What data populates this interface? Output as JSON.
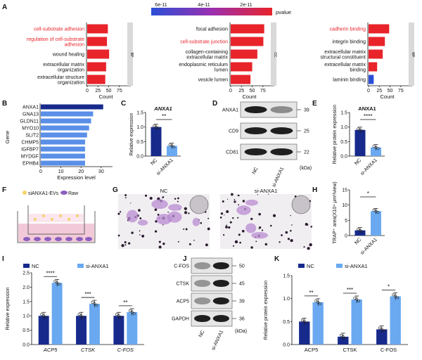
{
  "panel_letters": [
    "A",
    "B",
    "C",
    "D",
    "E",
    "F",
    "G",
    "H",
    "I",
    "J",
    "K"
  ],
  "colors": {
    "red": "#e8232a",
    "blue": "#2a4fd6",
    "navy": "#172a8c",
    "light_blue": "#6aa9f0",
    "gray_band": "#d9d9d9"
  },
  "colorbar": {
    "ticks": [
      "6e-11",
      "4e-11",
      "2e-11"
    ],
    "label": "pvalue"
  },
  "chart_data": [
    {
      "panel": "A",
      "type": "bar",
      "orientation": "horizontal",
      "facet": "BP",
      "xlabel": "Count",
      "xticks": [
        "0",
        "25",
        "50",
        "75"
      ],
      "xlim": [
        0,
        90
      ],
      "categories": [
        "cell-substrate adhesion",
        "regulation of cell-substrate adhesion",
        "wound healing",
        "extracellular matrix organization",
        "extracellular structure organization"
      ],
      "highlight": [
        true,
        true,
        false,
        false,
        false
      ],
      "values": [
        48,
        46,
        51,
        44,
        42
      ]
    },
    {
      "panel": "A",
      "type": "bar",
      "orientation": "horizontal",
      "facet": "CC",
      "xlabel": "Count",
      "xticks": [
        "0",
        "25",
        "50",
        "75"
      ],
      "xlim": [
        0,
        90
      ],
      "categories": [
        "focal adhesion",
        "cell-substrate junction",
        "collagen-containing extracellular matrix",
        "endoplasmic reticulum lumen",
        "vesicle lumen"
      ],
      "highlight": [
        false,
        true,
        false,
        false,
        false
      ],
      "values": [
        78,
        76,
        62,
        50,
        46
      ]
    },
    {
      "panel": "A",
      "type": "bar",
      "orientation": "horizontal",
      "facet": "MF",
      "xlabel": "Count",
      "xticks": [
        "0",
        "25",
        "50",
        "75"
      ],
      "xlim": [
        0,
        90
      ],
      "categories": [
        "cadherin binding",
        "integrin binding",
        "extracellular matrix structural constituent",
        "extracellular matrix binding",
        "laminin binding"
      ],
      "highlight": [
        true,
        false,
        false,
        false,
        false
      ],
      "values": [
        48,
        38,
        33,
        20,
        12
      ]
    },
    {
      "panel": "B",
      "type": "bar",
      "orientation": "horizontal",
      "xlabel": "Expression level",
      "ylabel": "Gene",
      "xticks": [
        "0",
        "10",
        "20",
        "30"
      ],
      "xlim": [
        0,
        36
      ],
      "categories": [
        "ANXA1",
        "GNA13",
        "GLDN11",
        "MYO10",
        "SLIT2",
        "CHMP5",
        "IGFBP7",
        "MYDGF",
        "EPHB4"
      ],
      "values": [
        31,
        26,
        25,
        24,
        23,
        22,
        22,
        22,
        22
      ]
    },
    {
      "panel": "C",
      "type": "bar",
      "title": "ANXA1",
      "ylabel": "Relative expression",
      "categories": [
        "NC",
        "si-ANXA1"
      ],
      "values": [
        1.0,
        0.35
      ],
      "yticks": [
        "0.0",
        "0.5",
        "1.0",
        "1.5"
      ],
      "ylim": [
        0,
        1.5
      ],
      "sig": "**"
    },
    {
      "panel": "E",
      "type": "bar",
      "title": "ANXA1",
      "ylabel": "Relative protein expression",
      "categories": [
        "NC",
        "si-ANXA1"
      ],
      "values": [
        0.9,
        0.3
      ],
      "yticks": [
        "0.0",
        "0.5",
        "1.0",
        "1.5"
      ],
      "ylim": [
        0,
        1.5
      ],
      "sig": "****"
    },
    {
      "panel": "H",
      "type": "bar",
      "ylabel": "TRAP⁺ area(X10⁴ μm²/view)",
      "categories": [
        "NC",
        "si-ANXA1"
      ],
      "values": [
        1.7,
        8
      ],
      "yticks": [
        "0",
        "5",
        "10",
        "15"
      ],
      "ylim": [
        0,
        15
      ],
      "sig": "*"
    },
    {
      "panel": "I",
      "type": "bar",
      "ylabel": "Relative expression",
      "categories": [
        "ACP5",
        "CTSK",
        "C-FOS"
      ],
      "series": [
        {
          "name": "NC",
          "values": [
            1.0,
            1.0,
            1.0
          ]
        },
        {
          "name": "si-ANXA1",
          "values": [
            2.15,
            1.42,
            1.13
          ]
        }
      ],
      "yticks": [
        "0.0",
        "0.5",
        "1.0",
        "1.5",
        "2.0",
        "2.5"
      ],
      "ylim": [
        0,
        2.5
      ],
      "sig": [
        "****",
        "***",
        "**"
      ]
    },
    {
      "panel": "K",
      "type": "bar",
      "ylabel": "Relative protein expression",
      "categories": [
        "ACP5",
        "CTSK",
        "C-FOS"
      ],
      "series": [
        {
          "name": "NC",
          "values": [
            0.5,
            0.17,
            0.33
          ]
        },
        {
          "name": "si-ANXA1",
          "values": [
            0.92,
            0.98,
            1.05
          ]
        }
      ],
      "yticks": [
        "0.0",
        "0.5",
        "1.0",
        "1.5"
      ],
      "ylim": [
        0,
        1.5
      ],
      "sig": [
        "**",
        "***",
        "*"
      ]
    }
  ],
  "blot_D": {
    "rows": [
      "ANXA1",
      "CD9",
      "CD81"
    ],
    "kda": [
      "39",
      "25",
      "22"
    ],
    "lanes": [
      "NC",
      "si-ANXA1"
    ],
    "unit": "(kDa)"
  },
  "blot_J": {
    "rows": [
      "C-FOS",
      "CTSK",
      "ACP5",
      "GAPDH"
    ],
    "kda": [
      "50",
      "45",
      "39",
      "36"
    ],
    "lanes": [
      "NC",
      "si-ANXA1"
    ],
    "unit": "(kDa)"
  },
  "panel_F": {
    "legend_a": "siANXA1-EVs",
    "legend_b": "Raw"
  },
  "panel_G": {
    "labels": [
      "NC",
      "si-ANXA1"
    ]
  }
}
